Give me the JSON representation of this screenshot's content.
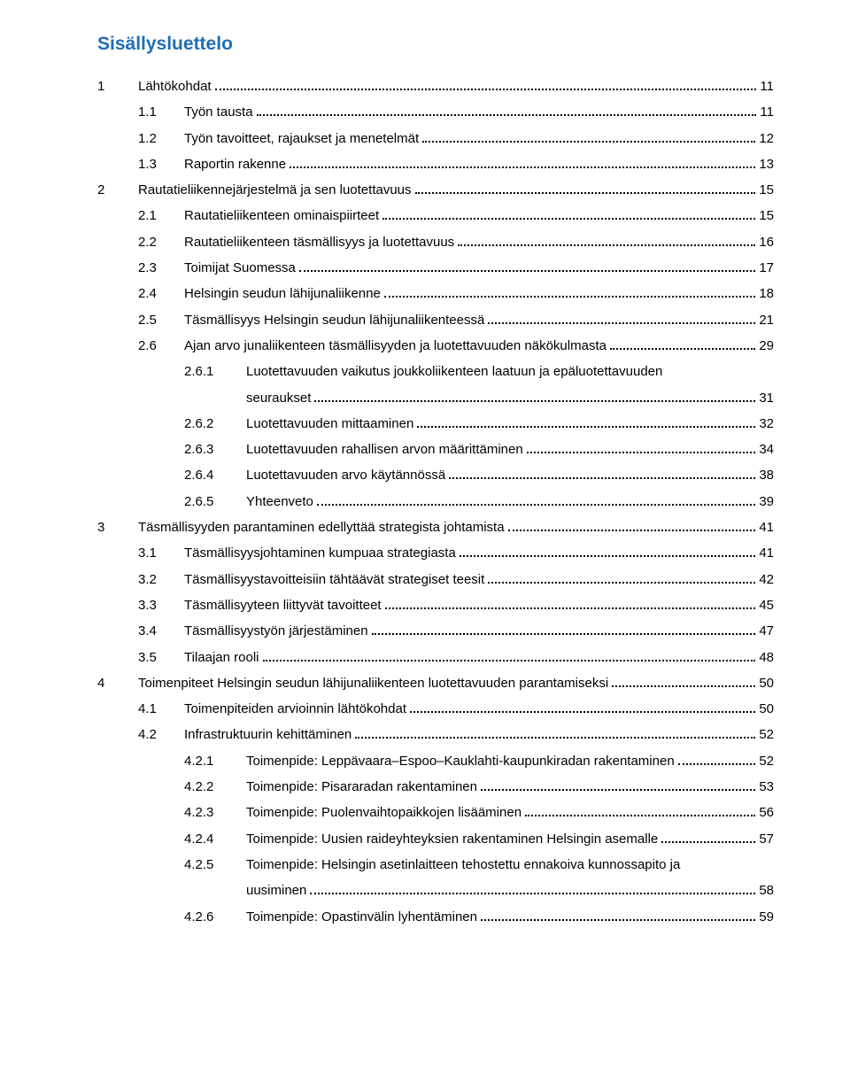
{
  "header": "Sisällysluettelo",
  "colors": {
    "header": "#1f6db5",
    "text": "#000000",
    "background": "#ffffff"
  },
  "typography": {
    "header_fontsize": 21,
    "body_fontsize": 15,
    "font_family": "Arial"
  },
  "entries": [
    {
      "level": 1,
      "num": "1",
      "text": "Lähtökohdat",
      "page": "11"
    },
    {
      "level": 2,
      "num": "1.1",
      "text": "Työn tausta",
      "page": "11"
    },
    {
      "level": 2,
      "num": "1.2",
      "text": "Työn tavoitteet, rajaukset ja menetelmät",
      "page": "12"
    },
    {
      "level": 2,
      "num": "1.3",
      "text": "Raportin rakenne",
      "page": "13"
    },
    {
      "level": 1,
      "num": "2",
      "text": "Rautatieliikennejärjestelmä ja sen luotettavuus",
      "page": "15"
    },
    {
      "level": 2,
      "num": "2.1",
      "text": "Rautatieliikenteen ominaispiirteet",
      "page": "15"
    },
    {
      "level": 2,
      "num": "2.2",
      "text": "Rautatieliikenteen täsmällisyys ja luotettavuus",
      "page": "16"
    },
    {
      "level": 2,
      "num": "2.3",
      "text": "Toimijat Suomessa",
      "page": "17"
    },
    {
      "level": 2,
      "num": "2.4",
      "text": "Helsingin seudun lähijunaliikenne",
      "page": "18"
    },
    {
      "level": 2,
      "num": "2.5",
      "text": "Täsmällisyys Helsingin seudun lähijunaliikenteessä",
      "page": "21"
    },
    {
      "level": 2,
      "num": "2.6",
      "text": "Ajan arvo junaliikenteen täsmällisyyden ja luotettavuuden näkökulmasta",
      "page": "29"
    },
    {
      "level": 3,
      "num": "2.6.1",
      "text": "Luotettavuuden vaikutus joukkoliikenteen laatuun ja epäluotettavuuden",
      "cont": "seuraukset",
      "page": "31"
    },
    {
      "level": 3,
      "num": "2.6.2",
      "text": "Luotettavuuden mittaaminen",
      "page": "32"
    },
    {
      "level": 3,
      "num": "2.6.3",
      "text": "Luotettavuuden rahallisen arvon määrittäminen",
      "page": "34"
    },
    {
      "level": 3,
      "num": "2.6.4",
      "text": "Luotettavuuden arvo käytännössä",
      "page": "38"
    },
    {
      "level": 3,
      "num": "2.6.5",
      "text": "Yhteenveto",
      "page": "39"
    },
    {
      "level": 1,
      "num": "3",
      "text": "Täsmällisyyden parantaminen edellyttää strategista johtamista",
      "page": "41"
    },
    {
      "level": 2,
      "num": "3.1",
      "text": "Täsmällisyysjohtaminen kumpuaa strategiasta",
      "page": "41"
    },
    {
      "level": 2,
      "num": "3.2",
      "text": "Täsmällisyystavoitteisiin tähtäävät strategiset teesit",
      "page": "42"
    },
    {
      "level": 2,
      "num": "3.3",
      "text": "Täsmällisyyteen liittyvät tavoitteet",
      "page": "45"
    },
    {
      "level": 2,
      "num": "3.4",
      "text": "Täsmällisyystyön järjestäminen",
      "page": "47"
    },
    {
      "level": 2,
      "num": "3.5",
      "text": "Tilaajan rooli",
      "page": "48"
    },
    {
      "level": 1,
      "num": "4",
      "text": "Toimenpiteet Helsingin seudun lähijunaliikenteen luotettavuuden parantamiseksi",
      "page": "50"
    },
    {
      "level": 2,
      "num": "4.1",
      "text": "Toimenpiteiden arvioinnin lähtökohdat",
      "page": "50"
    },
    {
      "level": 2,
      "num": "4.2",
      "text": "Infrastruktuurin kehittäminen",
      "page": "52"
    },
    {
      "level": 3,
      "num": "4.2.1",
      "text": "Toimenpide: Leppävaara–Espoo–Kauklahti-kaupunkiradan rakentaminen",
      "page": "52"
    },
    {
      "level": 3,
      "num": "4.2.2",
      "text": "Toimenpide: Pisararadan rakentaminen",
      "page": "53"
    },
    {
      "level": 3,
      "num": "4.2.3",
      "text": "Toimenpide: Puolenvaihtopaikkojen lisääminen",
      "page": "56"
    },
    {
      "level": 3,
      "num": "4.2.4",
      "text": "Toimenpide: Uusien raideyhteyksien rakentaminen Helsingin asemalle",
      "page": "57"
    },
    {
      "level": 3,
      "num": "4.2.5",
      "text": "Toimenpide: Helsingin asetinlaitteen tehostettu ennakoiva kunnossapito ja",
      "cont": "uusiminen",
      "page": "58"
    },
    {
      "level": 3,
      "num": "4.2.6",
      "text": "Toimenpide: Opastinvälin lyhentäminen",
      "page": "59"
    }
  ]
}
